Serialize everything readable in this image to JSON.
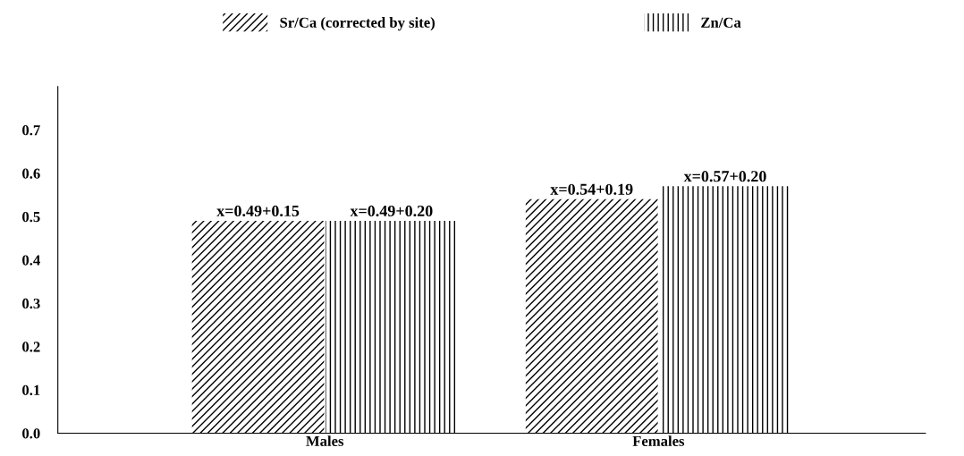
{
  "chart_data": {
    "type": "bar",
    "categories": [
      "Males",
      "Females"
    ],
    "series": [
      {
        "name": "Sr/Ca (corrected by site)",
        "color": "#000000",
        "values": [
          0.49,
          0.54
        ],
        "value_labels": [
          "x=0.49+0.15",
          "x=0.54+0.19"
        ]
      },
      {
        "name": "Zn/Ca",
        "color": "#000000",
        "values": [
          0.49,
          0.57
        ],
        "value_labels": [
          "x=0.49+0.20",
          "x=0.57+0.20"
        ]
      }
    ],
    "ylim": [
      0,
      0.8
    ],
    "yticks": [
      {
        "value": 0,
        "label": "0.0"
      },
      0.1,
      0.2,
      0.3,
      0.4,
      0.5,
      0.6,
      0.7
    ],
    "grid": false,
    "legend": "top"
  }
}
